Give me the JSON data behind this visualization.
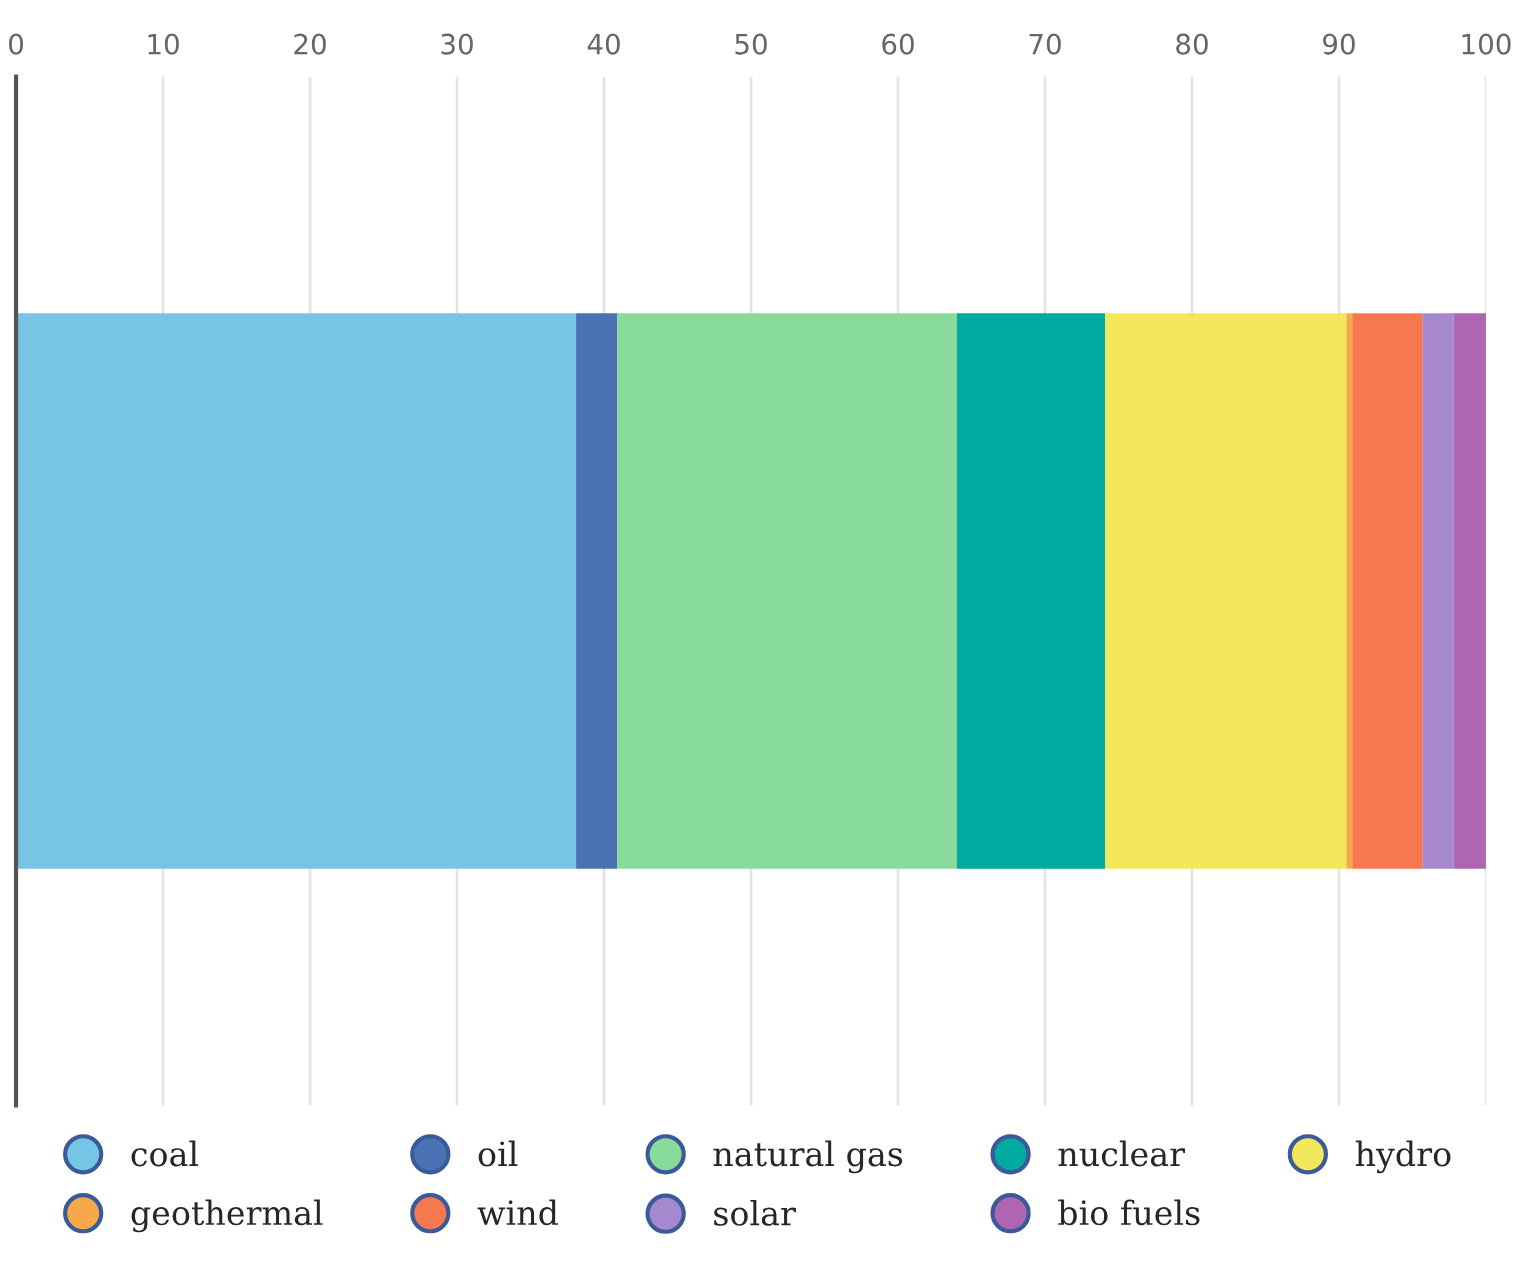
{
  "chart_data": {
    "type": "bar",
    "orientation": "horizontal",
    "stacked": true,
    "categories": [
      null
    ],
    "series": [
      {
        "name": "coal",
        "color": "#76c5e4",
        "values": [
          38.1
        ]
      },
      {
        "name": "oil",
        "color": "#4a72b4",
        "values": [
          2.8
        ]
      },
      {
        "name": "natural gas",
        "color": "#88db9a",
        "values": [
          23.1
        ]
      },
      {
        "name": "nuclear",
        "color": "#00aa9e",
        "values": [
          10.1
        ]
      },
      {
        "name": "hydro",
        "color": "#f4e75b",
        "values": [
          16.4
        ]
      },
      {
        "name": "geothermal",
        "color": "#f7a94a",
        "values": [
          0.4
        ]
      },
      {
        "name": "wind",
        "color": "#f6784f",
        "values": [
          4.8
        ]
      },
      {
        "name": "solar",
        "color": "#a688cf",
        "values": [
          2.1
        ]
      },
      {
        "name": "bio fuels",
        "color": "#ae66b3",
        "values": [
          2.2
        ]
      }
    ],
    "xlim": [
      0,
      100
    ],
    "xticks": [
      0,
      10,
      20,
      30,
      40,
      50,
      60,
      70,
      80,
      90,
      100
    ],
    "grid": "x",
    "legend": "bottom",
    "tick_labels": "x"
  }
}
